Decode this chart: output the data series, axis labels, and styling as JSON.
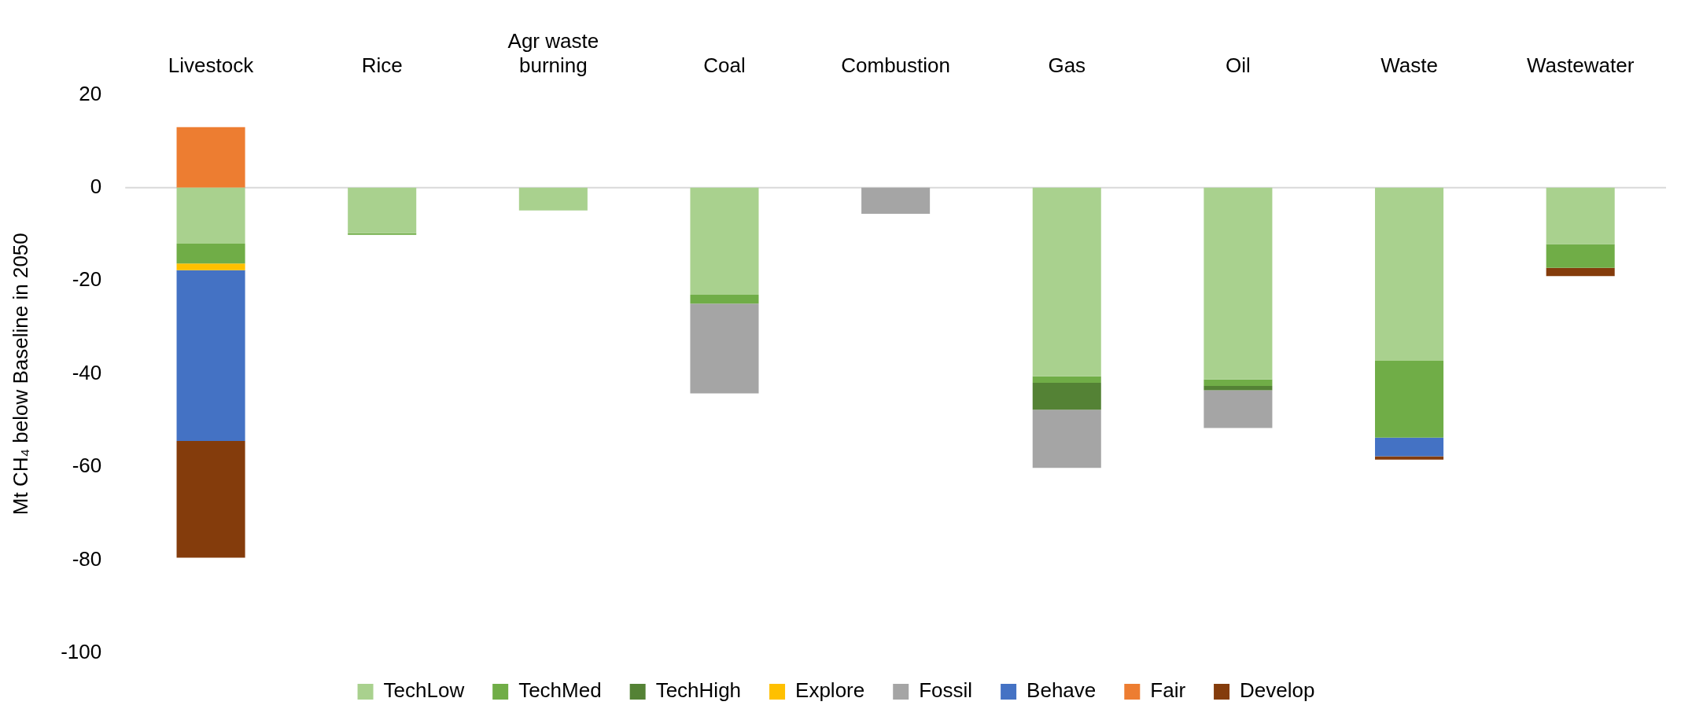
{
  "chart_data": {
    "type": "bar",
    "stacked": true,
    "ylabel": "Mt CH₄ below Baseline in 2050",
    "categories": [
      "Livestock",
      "Rice",
      "Agr waste burning",
      "Coal",
      "Combustion",
      "Gas",
      "Oil",
      "Waste",
      "Wastewater"
    ],
    "series": [
      {
        "name": "TechLow",
        "color": "#a9d18e",
        "values": [
          -12,
          -9.8,
          -4.9,
          -23,
          null,
          -40.5,
          -41.2,
          -37.2,
          -12.1
        ]
      },
      {
        "name": "TechMed",
        "color": "#70ad47",
        "values": [
          -4.3,
          -0.3,
          null,
          -1.9,
          null,
          -1.4,
          -1.4,
          -16.5,
          -5.1
        ]
      },
      {
        "name": "TechHigh",
        "color": "#548235",
        "values": [
          null,
          null,
          null,
          null,
          null,
          -5.8,
          -0.9,
          null,
          null
        ]
      },
      {
        "name": "Explore",
        "color": "#ffc000",
        "values": [
          -1.4,
          null,
          null,
          null,
          null,
          null,
          null,
          null,
          null
        ]
      },
      {
        "name": "Fossil",
        "color": "#a5a5a5",
        "values": [
          null,
          null,
          null,
          -19.3,
          -5.6,
          -12.5,
          -8.1,
          null,
          null
        ]
      },
      {
        "name": "Behave",
        "color": "#4472c4",
        "values": [
          -36.7,
          null,
          null,
          null,
          null,
          null,
          null,
          -4,
          null
        ]
      },
      {
        "name": "Fair",
        "color": "#ed7d31",
        "values": [
          13,
          null,
          null,
          null,
          null,
          null,
          null,
          null,
          null
        ]
      },
      {
        "name": "Develop",
        "color": "#843c0c",
        "values": [
          -25.1,
          null,
          null,
          null,
          null,
          null,
          null,
          -0.7,
          -1.8
        ]
      }
    ],
    "ylim": [
      -100,
      20
    ],
    "yticks": [
      -100,
      -80,
      -60,
      -40,
      -20,
      0,
      20
    ],
    "grid": false,
    "legend": "bottom",
    "ref_lines": [
      {
        "axis": "y",
        "value": 0,
        "color": "#d9d9d9"
      }
    ]
  }
}
